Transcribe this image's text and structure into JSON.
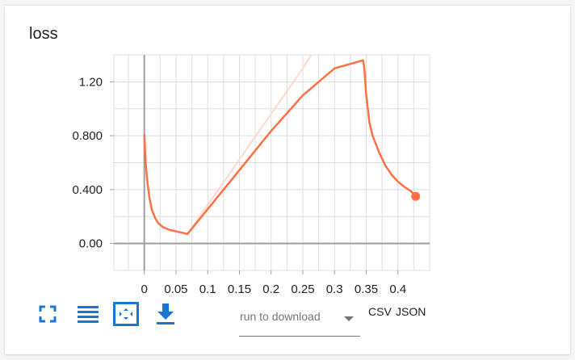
{
  "card": {
    "title": "loss"
  },
  "chart_data": {
    "type": "line",
    "title": "loss",
    "xlabel": "",
    "ylabel": "",
    "xlim": [
      -0.048,
      0.45
    ],
    "ylim": [
      -0.2,
      1.4
    ],
    "x_ticks": [
      {
        "value": 0,
        "label": "0"
      },
      {
        "value": 0.05,
        "label": "0.05"
      },
      {
        "value": 0.1,
        "label": "0.1"
      },
      {
        "value": 0.15,
        "label": "0.15"
      },
      {
        "value": 0.2,
        "label": "0.2"
      },
      {
        "value": 0.25,
        "label": "0.25"
      },
      {
        "value": 0.3,
        "label": "0.3"
      },
      {
        "value": 0.35,
        "label": "0.35"
      },
      {
        "value": 0.4,
        "label": "0.4"
      }
    ],
    "y_ticks": [
      {
        "value": 0,
        "label": "0.00"
      },
      {
        "value": 0.4,
        "label": "0.400"
      },
      {
        "value": 0.8,
        "label": "0.800"
      },
      {
        "value": 1.2,
        "label": "1.20"
      }
    ],
    "grid": true,
    "series": [
      {
        "role": "smoothed",
        "color": "#ff7043",
        "x": [
          0,
          0.002,
          0.005,
          0.008,
          0.012,
          0.017,
          0.022,
          0.03,
          0.04,
          0.05,
          0.06,
          0.068,
          0.1,
          0.15,
          0.2,
          0.25,
          0.3,
          0.345,
          0.347,
          0.35,
          0.355,
          0.36,
          0.37,
          0.38,
          0.39,
          0.4,
          0.41,
          0.42,
          0.428
        ],
        "y": [
          0.81,
          0.6,
          0.45,
          0.34,
          0.25,
          0.19,
          0.15,
          0.12,
          0.1,
          0.09,
          0.08,
          0.07,
          0.255,
          0.545,
          0.835,
          1.1,
          1.3,
          1.36,
          1.3,
          1.1,
          0.9,
          0.8,
          0.68,
          0.58,
          0.51,
          0.46,
          0.42,
          0.39,
          0.35
        ]
      },
      {
        "role": "raw",
        "color": "#ffd8cc",
        "x": [
          0.068,
          0.25,
          0.27
        ],
        "y": [
          0.07,
          1.3,
          1.45
        ]
      }
    ],
    "last_point": {
      "x": 0.428,
      "y": 0.35
    }
  },
  "toolbar": {
    "icons": [
      "fit-domain-icon",
      "toggle-log-scale-icon",
      "fullscreen-icon",
      "download-icon"
    ],
    "accent_color": "#1976d2"
  },
  "download": {
    "select_label": "run to download",
    "csv_label": "CSV",
    "json_label": "JSON"
  }
}
